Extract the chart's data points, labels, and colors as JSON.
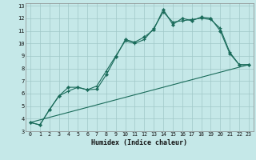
{
  "xlabel": "Humidex (Indice chaleur)",
  "bg_color": "#c5e8e8",
  "grid_color": "#a0c8c8",
  "line_color": "#1a6b5a",
  "xlim": [
    -0.5,
    23.5
  ],
  "ylim": [
    3,
    13.2
  ],
  "xticks": [
    0,
    1,
    2,
    3,
    4,
    5,
    6,
    7,
    8,
    9,
    10,
    11,
    12,
    13,
    14,
    15,
    16,
    17,
    18,
    19,
    20,
    21,
    22,
    23
  ],
  "yticks": [
    3,
    4,
    5,
    6,
    7,
    8,
    9,
    10,
    11,
    12,
    13
  ],
  "series1_x": [
    0,
    1,
    2,
    3,
    4,
    5,
    6,
    7,
    8,
    9,
    10,
    11,
    12,
    13,
    14,
    15,
    16,
    17,
    18,
    19,
    20,
    21,
    22,
    23
  ],
  "series1_y": [
    3.7,
    3.5,
    4.7,
    5.8,
    6.5,
    6.5,
    6.3,
    6.35,
    7.5,
    8.9,
    10.3,
    10.1,
    10.5,
    11.1,
    12.7,
    11.5,
    12.0,
    11.8,
    12.1,
    12.0,
    11.0,
    9.2,
    8.3,
    8.3
  ],
  "series2_x": [
    0,
    1,
    2,
    3,
    4,
    5,
    6,
    7,
    8,
    9,
    10,
    11,
    12,
    13,
    14,
    15,
    16,
    17,
    18,
    19,
    20,
    21,
    22,
    23
  ],
  "series2_y": [
    3.7,
    3.5,
    4.7,
    5.8,
    6.2,
    6.5,
    6.3,
    6.6,
    7.8,
    9.0,
    10.2,
    10.0,
    10.3,
    11.2,
    12.5,
    11.7,
    11.8,
    11.9,
    12.0,
    11.9,
    11.2,
    9.3,
    8.3,
    8.3
  ],
  "series3_x": [
    0,
    23
  ],
  "series3_y": [
    3.7,
    8.3
  ]
}
